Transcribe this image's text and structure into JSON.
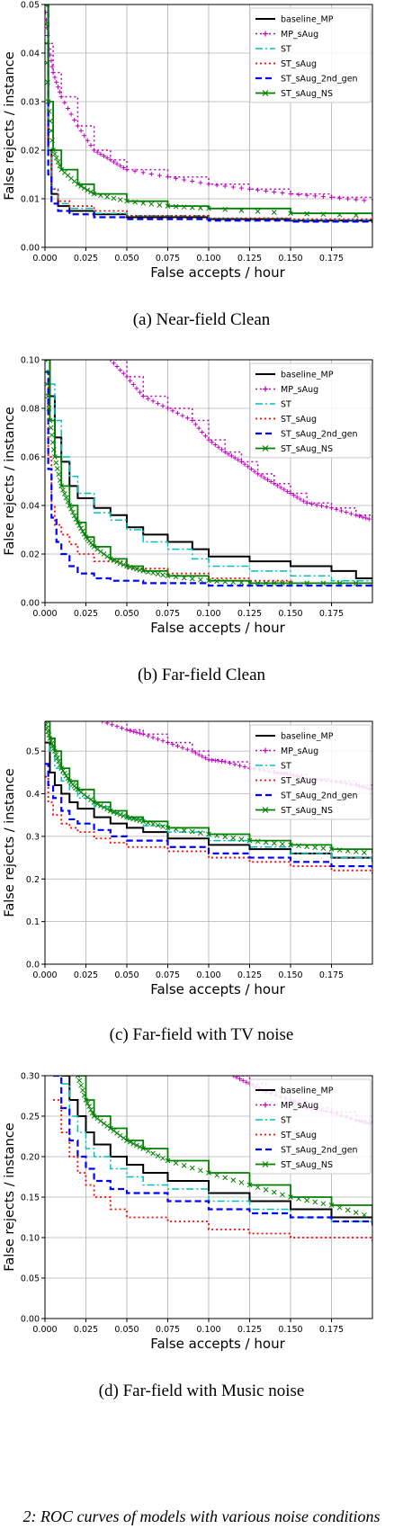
{
  "chart_data": [
    {
      "type": "line",
      "caption": "(a) Near-field Clean",
      "xlabel": "False accepts / hour",
      "ylabel": "False rejects / instance",
      "xlim": [
        0,
        0.2
      ],
      "ylim": [
        0,
        0.05
      ],
      "xticks": [
        "0.000",
        "0.025",
        "0.050",
        "0.075",
        "0.100",
        "0.125",
        "0.150",
        "0.175"
      ],
      "yticks": [
        "0.00",
        "0.01",
        "0.02",
        "0.03",
        "0.04",
        "0.05"
      ],
      "grid": true,
      "legend_position": "top-right",
      "series": [
        {
          "name": "baseline_MP",
          "x": [
            0,
            0.002,
            0.004,
            0.008,
            0.015,
            0.03,
            0.05,
            0.1,
            0.15,
            0.2
          ],
          "y": [
            0.05,
            0.02,
            0.011,
            0.0085,
            0.0075,
            0.0068,
            0.0062,
            0.0058,
            0.0055,
            0.0052
          ]
        },
        {
          "name": "MP_sAug",
          "x": [
            0,
            0.002,
            0.005,
            0.01,
            0.02,
            0.03,
            0.04,
            0.05,
            0.075,
            0.1,
            0.125,
            0.15,
            0.175,
            0.2
          ],
          "y": [
            0.05,
            0.042,
            0.036,
            0.031,
            0.025,
            0.02,
            0.018,
            0.016,
            0.0145,
            0.013,
            0.012,
            0.011,
            0.0103,
            0.0095
          ]
        },
        {
          "name": "ST",
          "x": [
            0,
            0.002,
            0.004,
            0.008,
            0.015,
            0.03,
            0.05,
            0.1,
            0.15,
            0.2
          ],
          "y": [
            0.05,
            0.02,
            0.012,
            0.009,
            0.008,
            0.007,
            0.0065,
            0.006,
            0.0057,
            0.0055
          ]
        },
        {
          "name": "ST_sAug",
          "x": [
            0,
            0.002,
            0.004,
            0.008,
            0.015,
            0.03,
            0.05,
            0.1,
            0.15,
            0.2
          ],
          "y": [
            0.05,
            0.02,
            0.012,
            0.0095,
            0.0085,
            0.0075,
            0.0065,
            0.006,
            0.0058,
            0.0055
          ]
        },
        {
          "name": "ST_sAug_2nd_gen",
          "x": [
            0,
            0.002,
            0.004,
            0.008,
            0.015,
            0.03,
            0.05,
            0.1,
            0.15,
            0.2
          ],
          "y": [
            0.05,
            0.015,
            0.009,
            0.0075,
            0.0068,
            0.0062,
            0.0058,
            0.0055,
            0.0053,
            0.005
          ]
        },
        {
          "name": "ST_sAug_NS",
          "x": [
            0,
            0.002,
            0.005,
            0.01,
            0.02,
            0.03,
            0.05,
            0.075,
            0.1,
            0.15,
            0.2
          ],
          "y": [
            0.05,
            0.03,
            0.02,
            0.016,
            0.013,
            0.011,
            0.0095,
            0.0085,
            0.008,
            0.007,
            0.0065
          ]
        }
      ]
    },
    {
      "type": "line",
      "caption": "(b) Far-field Clean",
      "xlabel": "False accepts / hour",
      "ylabel": "False rejects / instance",
      "xlim": [
        0,
        0.2
      ],
      "ylim": [
        0,
        0.1
      ],
      "xticks": [
        "0.000",
        "0.025",
        "0.050",
        "0.075",
        "0.100",
        "0.125",
        "0.150",
        "0.175"
      ],
      "yticks": [
        "0.00",
        "0.02",
        "0.04",
        "0.06",
        "0.08",
        "0.10"
      ],
      "grid": true,
      "legend_position": "top-right",
      "series": [
        {
          "name": "baseline_MP",
          "x": [
            0,
            0.003,
            0.006,
            0.01,
            0.015,
            0.02,
            0.03,
            0.04,
            0.05,
            0.06,
            0.075,
            0.09,
            0.1,
            0.125,
            0.15,
            0.175,
            0.19,
            0.2
          ],
          "y": [
            0.1,
            0.085,
            0.068,
            0.058,
            0.048,
            0.043,
            0.039,
            0.036,
            0.031,
            0.028,
            0.025,
            0.022,
            0.019,
            0.017,
            0.015,
            0.013,
            0.01,
            0.01
          ]
        },
        {
          "name": "MP_sAug",
          "x": [
            0.04,
            0.05,
            0.06,
            0.075,
            0.09,
            0.1,
            0.11,
            0.12,
            0.13,
            0.14,
            0.15,
            0.16,
            0.175,
            0.19,
            0.2
          ],
          "y": [
            0.1,
            0.093,
            0.085,
            0.08,
            0.075,
            0.067,
            0.062,
            0.058,
            0.053,
            0.049,
            0.045,
            0.041,
            0.039,
            0.036,
            0.034
          ]
        },
        {
          "name": "ST",
          "x": [
            0,
            0.003,
            0.006,
            0.01,
            0.015,
            0.02,
            0.03,
            0.04,
            0.05,
            0.06,
            0.075,
            0.09,
            0.1,
            0.125,
            0.15,
            0.175,
            0.2
          ],
          "y": [
            0.1,
            0.09,
            0.075,
            0.06,
            0.052,
            0.045,
            0.037,
            0.034,
            0.03,
            0.025,
            0.022,
            0.018,
            0.015,
            0.013,
            0.011,
            0.009,
            0.009
          ]
        },
        {
          "name": "ST_sAug",
          "x": [
            0,
            0.002,
            0.004,
            0.006,
            0.01,
            0.015,
            0.02,
            0.03,
            0.05,
            0.075,
            0.1,
            0.125,
            0.15,
            0.2
          ],
          "y": [
            0.095,
            0.06,
            0.04,
            0.032,
            0.028,
            0.024,
            0.02,
            0.017,
            0.014,
            0.012,
            0.01,
            0.009,
            0.008,
            0.008
          ]
        },
        {
          "name": "ST_sAug_2nd_gen",
          "x": [
            0,
            0.002,
            0.004,
            0.007,
            0.01,
            0.015,
            0.02,
            0.03,
            0.04,
            0.06,
            0.1,
            0.15,
            0.2
          ],
          "y": [
            0.095,
            0.055,
            0.035,
            0.025,
            0.02,
            0.015,
            0.012,
            0.01,
            0.009,
            0.008,
            0.007,
            0.007,
            0.007
          ]
        },
        {
          "name": "ST_sAug_NS",
          "x": [
            0,
            0.003,
            0.006,
            0.01,
            0.015,
            0.02,
            0.025,
            0.03,
            0.04,
            0.05,
            0.06,
            0.075,
            0.1,
            0.125,
            0.15,
            0.2
          ],
          "y": [
            0.1,
            0.075,
            0.06,
            0.048,
            0.04,
            0.033,
            0.027,
            0.023,
            0.018,
            0.015,
            0.013,
            0.011,
            0.009,
            0.008,
            0.008,
            0.008
          ]
        }
      ]
    },
    {
      "type": "line",
      "caption": "(c) Far-field with TV noise",
      "xlabel": "False accepts / hour",
      "ylabel": "False rejects / instance",
      "xlim": [
        0,
        0.2
      ],
      "ylim": [
        0,
        0.57
      ],
      "xticks": [
        "0.000",
        "0.025",
        "0.050",
        "0.075",
        "0.100",
        "0.125",
        "0.150",
        "0.175"
      ],
      "yticks": [
        "0.0",
        "0.1",
        "0.2",
        "0.3",
        "0.4",
        "0.5"
      ],
      "grid": true,
      "legend_position": "top-right",
      "series": [
        {
          "name": "baseline_MP",
          "x": [
            0,
            0.003,
            0.006,
            0.01,
            0.015,
            0.02,
            0.03,
            0.04,
            0.05,
            0.06,
            0.075,
            0.1,
            0.125,
            0.15,
            0.175,
            0.2
          ],
          "y": [
            0.52,
            0.45,
            0.42,
            0.4,
            0.38,
            0.365,
            0.345,
            0.33,
            0.32,
            0.31,
            0.295,
            0.28,
            0.27,
            0.26,
            0.25,
            0.24
          ]
        },
        {
          "name": "MP_sAug",
          "x": [
            0.035,
            0.05,
            0.06,
            0.075,
            0.09,
            0.1,
            0.11,
            0.125,
            0.14,
            0.15,
            0.16,
            0.175,
            0.19,
            0.2
          ],
          "y": [
            0.57,
            0.55,
            0.54,
            0.52,
            0.5,
            0.48,
            0.475,
            0.46,
            0.45,
            0.445,
            0.435,
            0.43,
            0.42,
            0.41
          ]
        },
        {
          "name": "ST",
          "x": [
            0,
            0.003,
            0.006,
            0.01,
            0.015,
            0.02,
            0.03,
            0.04,
            0.05,
            0.06,
            0.075,
            0.1,
            0.125,
            0.15,
            0.175,
            0.2
          ],
          "y": [
            0.57,
            0.5,
            0.46,
            0.43,
            0.41,
            0.39,
            0.37,
            0.355,
            0.34,
            0.325,
            0.31,
            0.29,
            0.275,
            0.26,
            0.25,
            0.24
          ]
        },
        {
          "name": "ST_sAug",
          "x": [
            0,
            0.002,
            0.005,
            0.01,
            0.015,
            0.02,
            0.03,
            0.04,
            0.05,
            0.075,
            0.1,
            0.125,
            0.15,
            0.175,
            0.2
          ],
          "y": [
            0.44,
            0.38,
            0.35,
            0.33,
            0.32,
            0.31,
            0.295,
            0.285,
            0.275,
            0.265,
            0.25,
            0.24,
            0.23,
            0.22,
            0.21
          ]
        },
        {
          "name": "ST_sAug_2nd_gen",
          "x": [
            0,
            0.002,
            0.005,
            0.01,
            0.015,
            0.02,
            0.03,
            0.04,
            0.05,
            0.075,
            0.1,
            0.125,
            0.15,
            0.175,
            0.2
          ],
          "y": [
            0.47,
            0.42,
            0.39,
            0.36,
            0.34,
            0.33,
            0.315,
            0.3,
            0.29,
            0.275,
            0.26,
            0.25,
            0.24,
            0.23,
            0.225
          ]
        },
        {
          "name": "ST_sAug_NS",
          "x": [
            0,
            0.003,
            0.006,
            0.01,
            0.015,
            0.02,
            0.03,
            0.04,
            0.05,
            0.06,
            0.075,
            0.1,
            0.125,
            0.15,
            0.175,
            0.2
          ],
          "y": [
            0.57,
            0.53,
            0.5,
            0.46,
            0.43,
            0.41,
            0.38,
            0.36,
            0.345,
            0.335,
            0.32,
            0.305,
            0.29,
            0.28,
            0.27,
            0.26
          ]
        }
      ]
    },
    {
      "type": "line",
      "caption": "(d) Far-field with Music noise",
      "xlabel": "False accepts / hour",
      "ylabel": "False rejects / instance",
      "xlim": [
        0,
        0.2
      ],
      "ylim": [
        0,
        0.3
      ],
      "xticks": [
        "0.000",
        "0.025",
        "0.050",
        "0.075",
        "0.100",
        "0.125",
        "0.150",
        "0.175"
      ],
      "yticks": [
        "0.00",
        "0.05",
        "0.10",
        "0.15",
        "0.20",
        "0.25",
        "0.30"
      ],
      "grid": true,
      "legend_position": "top-right",
      "series": [
        {
          "name": "baseline_MP",
          "x": [
            0.01,
            0.015,
            0.02,
            0.025,
            0.03,
            0.04,
            0.05,
            0.06,
            0.075,
            0.1,
            0.125,
            0.15,
            0.175,
            0.2
          ],
          "y": [
            0.3,
            0.27,
            0.25,
            0.23,
            0.215,
            0.2,
            0.19,
            0.18,
            0.17,
            0.155,
            0.145,
            0.135,
            0.125,
            0.12
          ]
        },
        {
          "name": "MP_sAug",
          "x": [
            0.115,
            0.125,
            0.135,
            0.15,
            0.16,
            0.175,
            0.19,
            0.2
          ],
          "y": [
            0.3,
            0.29,
            0.28,
            0.27,
            0.26,
            0.255,
            0.245,
            0.24
          ]
        },
        {
          "name": "ST",
          "x": [
            0.01,
            0.015,
            0.02,
            0.025,
            0.03,
            0.04,
            0.05,
            0.06,
            0.075,
            0.1,
            0.125,
            0.15,
            0.175,
            0.2
          ],
          "y": [
            0.29,
            0.25,
            0.23,
            0.21,
            0.2,
            0.185,
            0.175,
            0.165,
            0.16,
            0.145,
            0.135,
            0.125,
            0.12,
            0.115
          ]
        },
        {
          "name": "ST_sAug",
          "x": [
            0.005,
            0.01,
            0.015,
            0.02,
            0.025,
            0.03,
            0.04,
            0.05,
            0.075,
            0.1,
            0.125,
            0.15,
            0.175,
            0.2
          ],
          "y": [
            0.27,
            0.23,
            0.2,
            0.18,
            0.165,
            0.15,
            0.135,
            0.125,
            0.12,
            0.11,
            0.105,
            0.1,
            0.1,
            0.095
          ]
        },
        {
          "name": "ST_sAug_2nd_gen",
          "x": [
            0.005,
            0.01,
            0.015,
            0.02,
            0.025,
            0.03,
            0.04,
            0.05,
            0.075,
            0.1,
            0.125,
            0.15,
            0.175,
            0.2
          ],
          "y": [
            0.3,
            0.26,
            0.22,
            0.2,
            0.185,
            0.17,
            0.16,
            0.155,
            0.145,
            0.135,
            0.13,
            0.125,
            0.12,
            0.115
          ]
        },
        {
          "name": "ST_sAug_NS",
          "x": [
            0.02,
            0.025,
            0.03,
            0.04,
            0.05,
            0.06,
            0.075,
            0.1,
            0.125,
            0.15,
            0.175,
            0.2
          ],
          "y": [
            0.3,
            0.27,
            0.25,
            0.235,
            0.22,
            0.21,
            0.195,
            0.18,
            0.165,
            0.15,
            0.14,
            0.125
          ]
        }
      ]
    }
  ],
  "figure": {
    "footer": "2: ROC curves of models with various noise conditions"
  }
}
